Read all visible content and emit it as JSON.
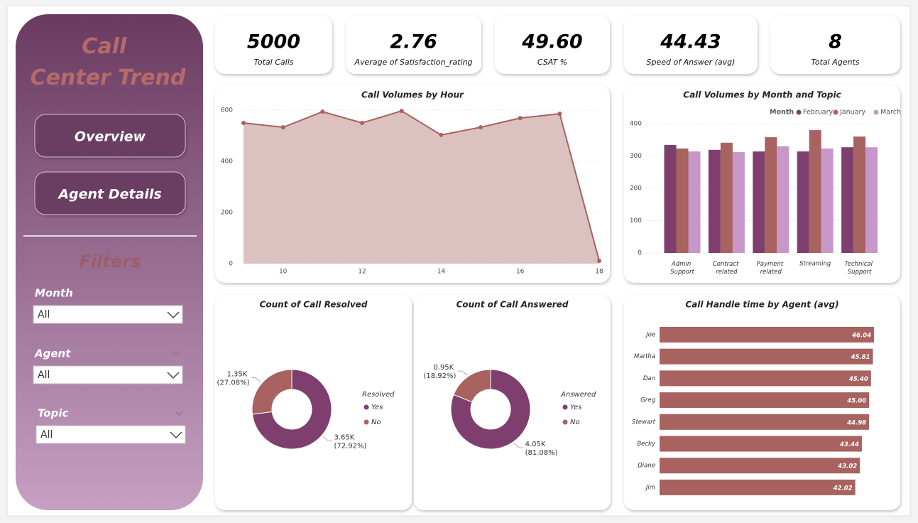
{
  "sidebar": {
    "title": "Call Center Trend",
    "buttons": [
      "Overview",
      "Agent Details"
    ],
    "filters_title": "Filters",
    "filters": [
      {
        "label": "Month",
        "value": "All"
      },
      {
        "label": "Agent",
        "value": "All"
      },
      {
        "label": "Topic",
        "value": "All"
      }
    ]
  },
  "kpis": [
    {
      "value": "5000",
      "label": "Total Calls"
    },
    {
      "value": "2.76",
      "label": "Average of Satisfaction_rating"
    },
    {
      "value": "49.60",
      "label": "CSAT %"
    },
    {
      "value": "44.43",
      "label": "Speed of Answer (avg)"
    },
    {
      "value": "8",
      "label": "Total Agents"
    }
  ],
  "chart_data": [
    {
      "type": "area",
      "title": "Call Volumes by Hour",
      "x": [
        9,
        10,
        11,
        12,
        13,
        14,
        15,
        16,
        17,
        18
      ],
      "values": [
        550,
        533,
        594,
        550,
        597,
        503,
        533,
        569,
        586,
        11
      ],
      "color": "#a8625f",
      "fill": "#dcc1c1",
      "xlim": [
        9,
        18
      ],
      "xticks": [
        10,
        12,
        14,
        16,
        18
      ],
      "ylim": [
        0,
        600
      ],
      "yticks": [
        0,
        200,
        400,
        600
      ],
      "grid": true
    },
    {
      "type": "grouped-bar",
      "title": "Call Volumes by Month and Topic",
      "legend_title": "Month",
      "categories": [
        "Admin Support",
        "Contract related",
        "Payment related",
        "Streaming",
        "Technical Support"
      ],
      "series": [
        {
          "name": "February",
          "color": "#7f3f6e",
          "values": [
            334,
            319,
            314,
            314,
            327
          ]
        },
        {
          "name": "January",
          "color": "#a8625f",
          "values": [
            323,
            341,
            358,
            380,
            360
          ]
        },
        {
          "name": "March",
          "color": "#c797c9",
          "values": [
            314,
            312,
            330,
            323,
            327
          ]
        }
      ],
      "ylim": [
        0,
        400
      ],
      "yticks": [
        0,
        100,
        200,
        300,
        400
      ],
      "grid": true
    },
    {
      "type": "donut",
      "title": "Count of Call Resolved",
      "legend_title": "Resolved",
      "categories": [
        "Yes",
        "No"
      ],
      "values": [
        3650,
        1350
      ],
      "value_labels": [
        "3.65K (72.92%)",
        "1.35K (27.08%)"
      ],
      "colors": [
        "#7f3f6e",
        "#a8625f"
      ]
    },
    {
      "type": "donut",
      "title": "Count of Call Answered",
      "legend_title": "Answered",
      "categories": [
        "Yes",
        "No"
      ],
      "values": [
        4050,
        950
      ],
      "value_labels": [
        "4.05K (81.08%)",
        "0.95K (18.92%)"
      ],
      "colors": [
        "#7f3f6e",
        "#a8625f"
      ]
    },
    {
      "type": "hbar",
      "title": "Call Handle time by Agent (avg)",
      "categories": [
        "Joe",
        "Martha",
        "Dan",
        "Greg",
        "Stewart",
        "Becky",
        "Diane",
        "Jim"
      ],
      "values": [
        46.04,
        45.81,
        45.4,
        45.0,
        44.98,
        43.44,
        43.02,
        42.02
      ],
      "value_labels": [
        "46.04",
        "45.81",
        "45.40",
        "45.00",
        "44.98",
        "43.44",
        "43.02",
        "42.02"
      ],
      "color": "#a8625f"
    }
  ]
}
